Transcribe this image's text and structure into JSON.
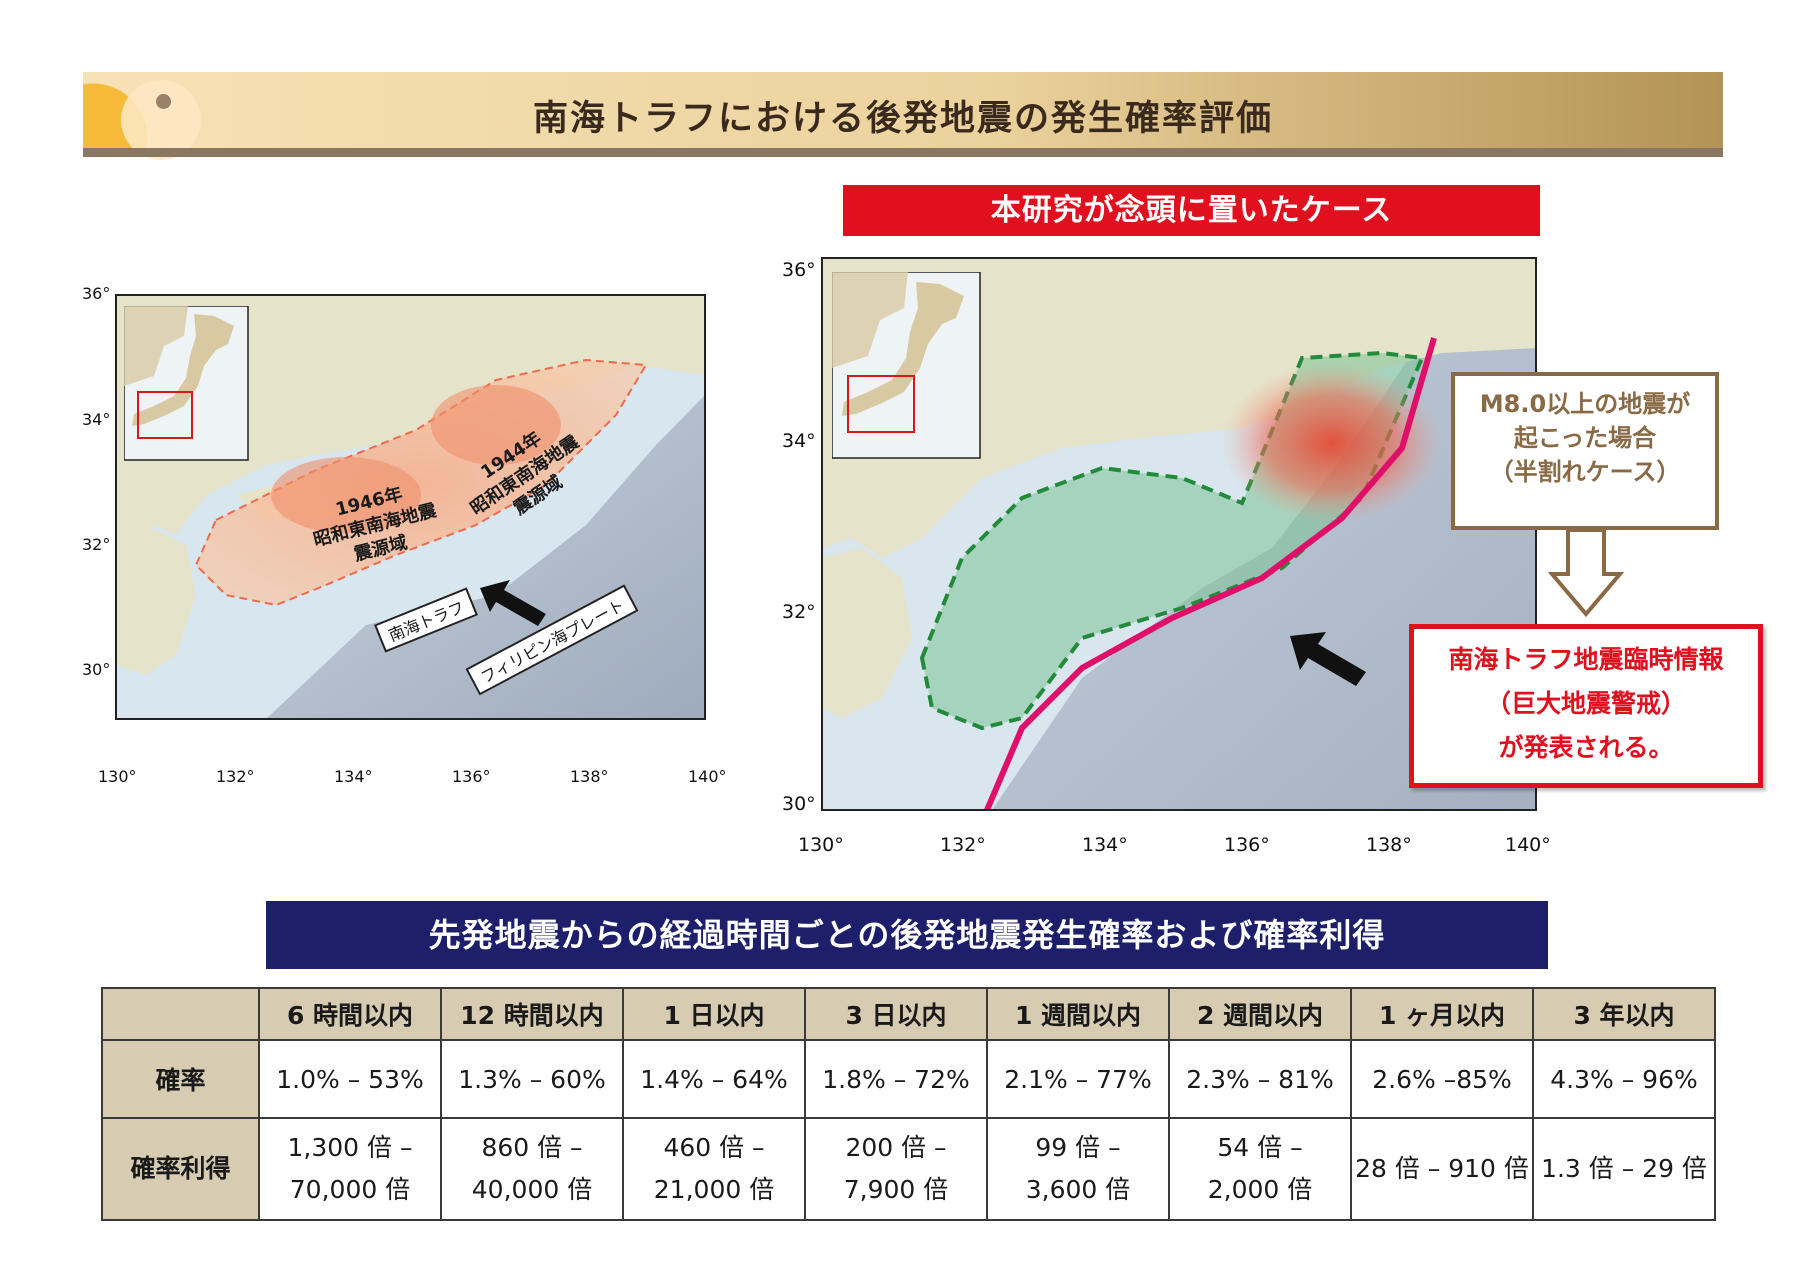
{
  "header": {
    "title": "南海トラフにおける後発地震の発生確率評価"
  },
  "case_banner": "本研究が念頭に置いたケース",
  "left_map": {
    "lat_labels": [
      "36°",
      "34°",
      "32°",
      "30°"
    ],
    "lon_labels": [
      "130°",
      "132°",
      "134°",
      "136°",
      "138°",
      "140°"
    ],
    "zone_1946": [
      "1946年",
      "昭和東南海地震",
      "震源域"
    ],
    "zone_1944": [
      "1944年",
      "昭和東南海地震",
      "震源域"
    ],
    "trough_label": "南海トラフ",
    "plate_label": "フィリピン海プレート"
  },
  "right_map": {
    "lat_labels": [
      "36°",
      "34°",
      "32°",
      "30°"
    ],
    "lon_labels": [
      "130°",
      "132°",
      "134°",
      "136°",
      "138°",
      "140°"
    ]
  },
  "m8_box": [
    "M8.0以上の地震が",
    "起こった場合",
    "（半割れケース）"
  ],
  "alert_box": [
    "南海トラフ地震臨時情報",
    "（巨大地震警戒）",
    "が発表される。"
  ],
  "table_banner": "先発地震からの経過時間ごとの後発地震発生確率および確率利得",
  "table": {
    "headers": [
      "6 時間以内",
      "12 時間以内",
      "1 日以内",
      "3 日以内",
      "1 週間以内",
      "2 週間以内",
      "1 ヶ月以内",
      "3 年以内"
    ],
    "row_probability": {
      "label": "確率",
      "values": [
        "1.0% – 53%",
        "1.3% – 60%",
        "1.4%  – 64%",
        "1.8% – 72%",
        "2.1% – 77%",
        "2.3% – 81%",
        "2.6% –85%",
        "4.3% – 96%"
      ]
    },
    "row_gain": {
      "label": "確率利得",
      "values": [
        [
          "1,300 倍 –",
          "70,000 倍"
        ],
        [
          "860 倍 –",
          "40,000 倍"
        ],
        [
          "460 倍 –",
          "21,000 倍"
        ],
        [
          "200 倍 –",
          "7,900 倍"
        ],
        [
          "99 倍 –",
          "3,600 倍"
        ],
        [
          "54 倍 –",
          "2,000 倍"
        ],
        [
          "28 倍 – 910 倍"
        ],
        [
          "1.3 倍 – 29 倍"
        ]
      ]
    }
  },
  "colors": {
    "header_accent": "#8a7762",
    "alert_red": "#e0101f",
    "navy": "#1e1f6a",
    "zone_green": "#2e8b3a",
    "trough_pink": "#e0106a"
  }
}
